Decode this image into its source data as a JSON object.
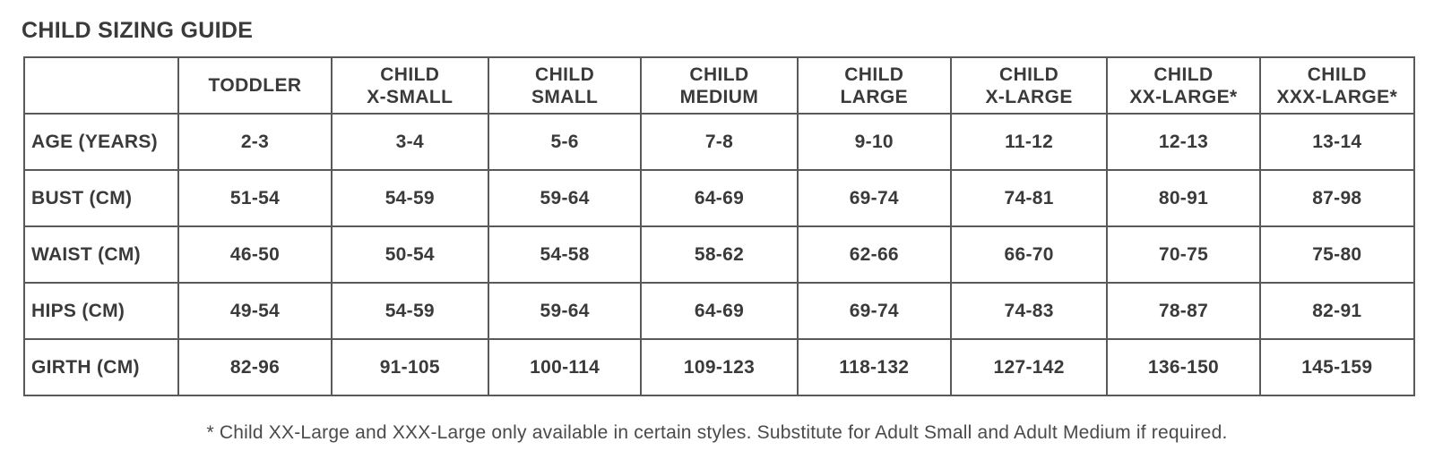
{
  "title": "CHILD SIZING GUIDE",
  "table": {
    "corner": "",
    "columns": [
      {
        "line1": "TODDLER",
        "line2": ""
      },
      {
        "line1": "CHILD",
        "line2": "X-SMALL"
      },
      {
        "line1": "CHILD",
        "line2": "SMALL"
      },
      {
        "line1": "CHILD",
        "line2": "MEDIUM"
      },
      {
        "line1": "CHILD",
        "line2": "LARGE"
      },
      {
        "line1": "CHILD",
        "line2": "X-LARGE"
      },
      {
        "line1": "CHILD",
        "line2": "XX-LARGE*"
      },
      {
        "line1": "CHILD",
        "line2": "XXX-LARGE*"
      }
    ],
    "rows": [
      {
        "label": "AGE (YEARS)",
        "values": [
          "2-3",
          "3-4",
          "5-6",
          "7-8",
          "9-10",
          "11-12",
          "12-13",
          "13-14"
        ]
      },
      {
        "label": "BUST (CM)",
        "values": [
          "51-54",
          "54-59",
          "59-64",
          "64-69",
          "69-74",
          "74-81",
          "80-91",
          "87-98"
        ]
      },
      {
        "label": "WAIST (CM)",
        "values": [
          "46-50",
          "50-54",
          "54-58",
          "58-62",
          "62-66",
          "66-70",
          "70-75",
          "75-80"
        ]
      },
      {
        "label": "HIPS (CM)",
        "values": [
          "49-54",
          "54-59",
          "59-64",
          "64-69",
          "69-74",
          "74-83",
          "78-87",
          "82-91"
        ]
      },
      {
        "label": "GIRTH (CM)",
        "values": [
          "82-96",
          "91-105",
          "100-114",
          "109-123",
          "118-132",
          "127-142",
          "136-150",
          "145-159"
        ]
      }
    ]
  },
  "footnote": "* Child XX-Large and XXX-Large only available in certain styles. Substitute for Adult Small and Adult Medium if required."
}
